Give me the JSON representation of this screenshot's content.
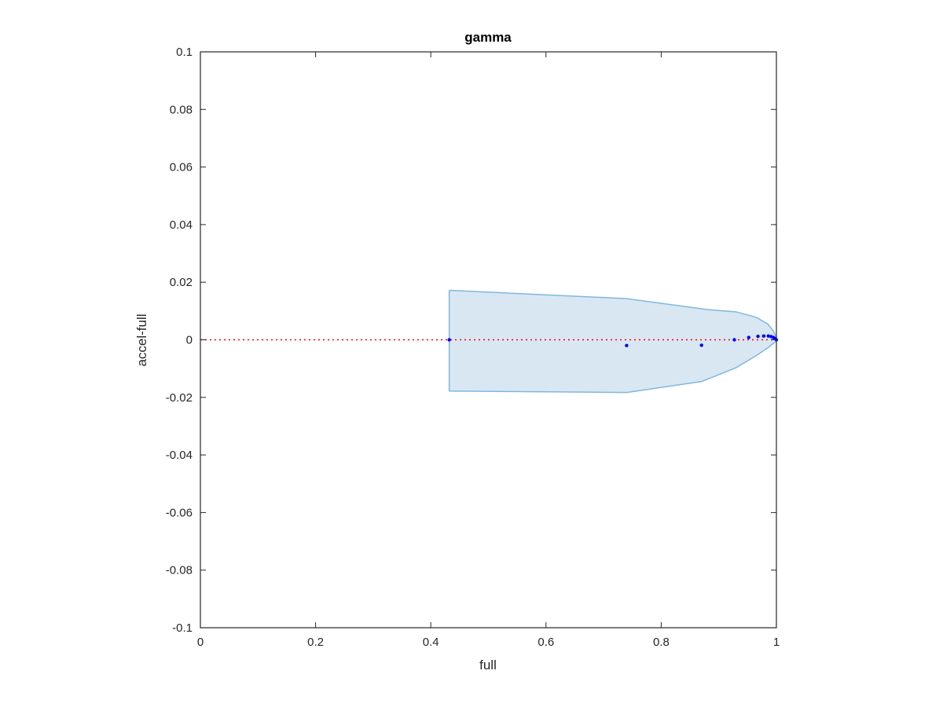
{
  "chart_data": {
    "type": "scatter",
    "title": "gamma",
    "xlabel": "full",
    "ylabel": "accel-full",
    "xlim": [
      0,
      1
    ],
    "ylim": [
      -0.1,
      0.1
    ],
    "xticks": [
      0,
      0.2,
      0.4,
      0.6,
      0.8,
      1
    ],
    "xtick_labels": [
      "0",
      "0.2",
      "0.4",
      "0.6",
      "0.8",
      "1"
    ],
    "yticks": [
      -0.1,
      -0.08,
      -0.06,
      -0.04,
      -0.02,
      0,
      0.02,
      0.04,
      0.06,
      0.08,
      0.1
    ],
    "ytick_labels": [
      "-0.1",
      "-0.08",
      "-0.06",
      "-0.04",
      "-0.02",
      "0",
      "0.02",
      "0.04",
      "0.06",
      "0.08",
      "0.1"
    ],
    "grid": false,
    "reference_line": {
      "y": 0,
      "color": "#ff0000",
      "style": "dotted"
    },
    "band": {
      "color_fill": "#d9e7f3",
      "color_edge": "#7fb8de",
      "upper": [
        [
          0.432,
          0.0172
        ],
        [
          0.74,
          0.0143
        ],
        [
          0.88,
          0.0105
        ],
        [
          0.93,
          0.0097
        ],
        [
          0.965,
          0.0078
        ],
        [
          0.985,
          0.0055
        ],
        [
          0.995,
          0.003
        ],
        [
          1.0,
          0.0008
        ]
      ],
      "lower": [
        [
          0.432,
          -0.0178
        ],
        [
          0.74,
          -0.0183
        ],
        [
          0.87,
          -0.0145
        ],
        [
          0.93,
          -0.0097
        ],
        [
          0.965,
          -0.0055
        ],
        [
          0.985,
          -0.0028
        ],
        [
          0.995,
          -0.0012
        ],
        [
          1.0,
          -0.0004
        ]
      ]
    },
    "series": [
      {
        "color": "#0000ff",
        "x": [
          0.432,
          0.74,
          0.87,
          0.927,
          0.952,
          0.968,
          0.978,
          0.986,
          0.991,
          0.995,
          0.998,
          1.0
        ],
        "y": [
          0.0,
          -0.002,
          -0.0019,
          0.0,
          0.0008,
          0.0012,
          0.0013,
          0.0013,
          0.0011,
          0.0008,
          0.0004,
          0.0
        ]
      }
    ]
  }
}
